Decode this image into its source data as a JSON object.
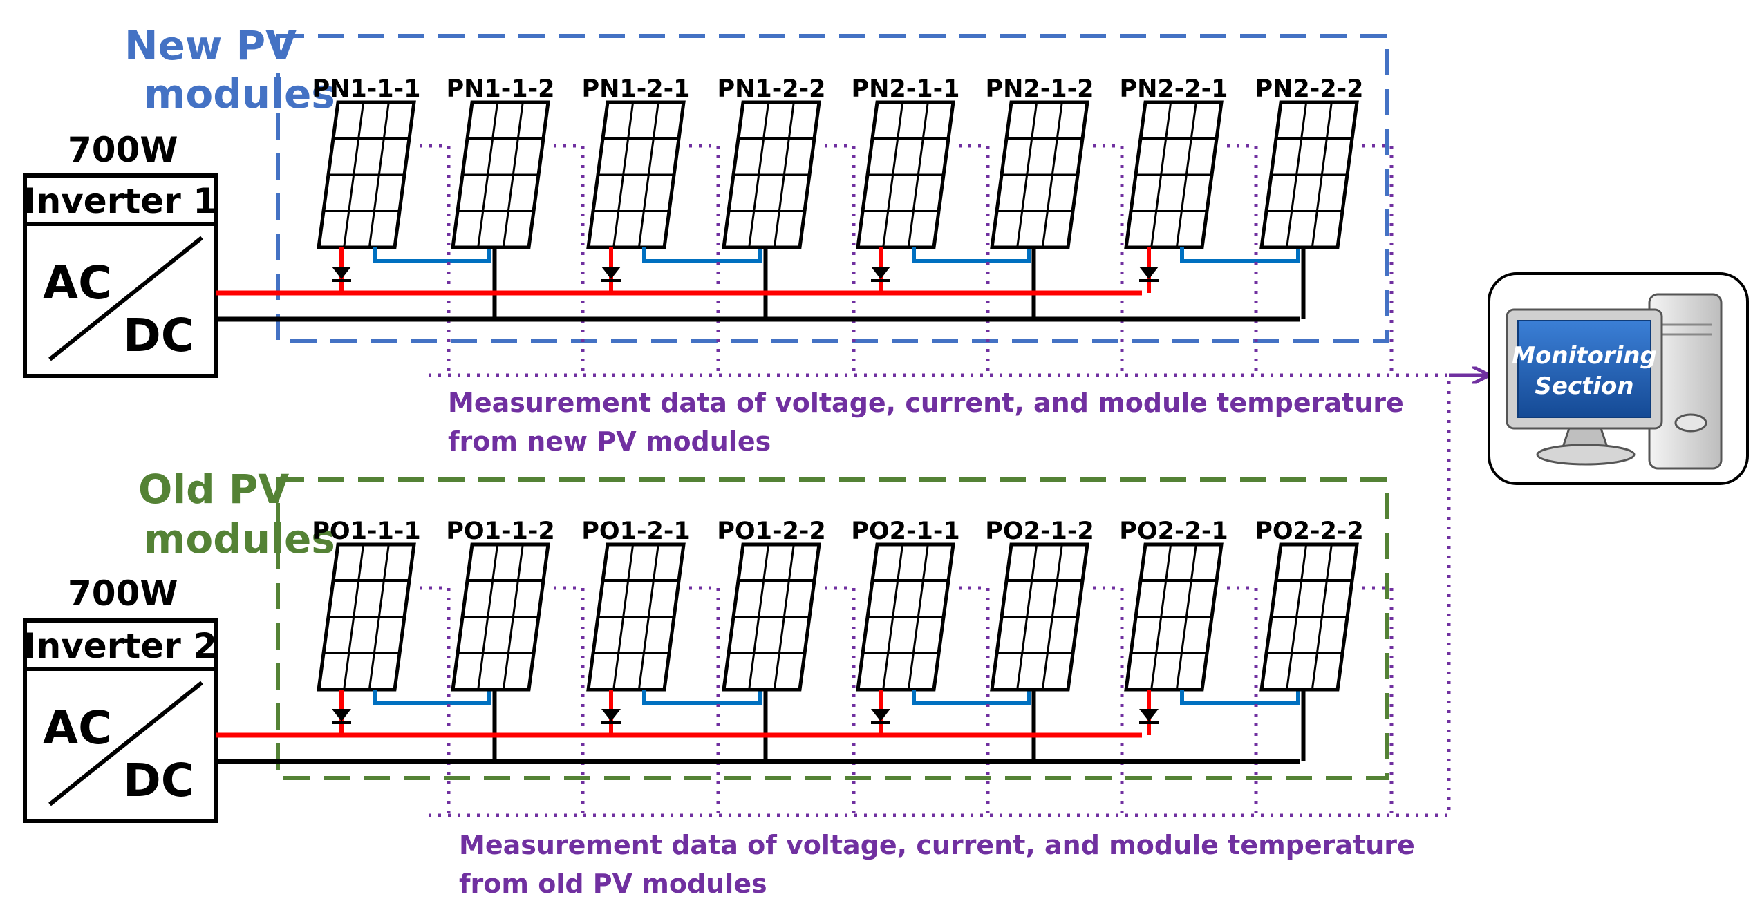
{
  "colors": {
    "new_group": "#4472c4",
    "old_group": "#548235",
    "positive_line": "#ff0000",
    "negative_line": "#000000",
    "series_link": "#0070c0",
    "measurement": "#7030a0",
    "monitor_screen": "#1f5fb0"
  },
  "groups": [
    {
      "id": "new",
      "title_line1": "New PV",
      "title_line2": "modules",
      "power": "700W",
      "inverter_label": "Inverter 1",
      "ac_label": "AC",
      "dc_label": "DC",
      "modules": [
        "PN1-1-1",
        "PN1-1-2",
        "PN1-2-1",
        "PN1-2-2",
        "PN2-1-1",
        "PN2-1-2",
        "PN2-2-1",
        "PN2-2-2"
      ],
      "measurement_line1": "Measurement data of voltage, current, and module temperature",
      "measurement_line2": "from new PV modules"
    },
    {
      "id": "old",
      "title_line1": "Old PV",
      "title_line2": "modules",
      "power": "700W",
      "inverter_label": "Inverter 2",
      "ac_label": "AC",
      "dc_label": "DC",
      "modules": [
        "PO1-1-1",
        "PO1-1-2",
        "PO1-2-1",
        "PO1-2-2",
        "PO2-1-1",
        "PO2-1-2",
        "PO2-2-1",
        "PO2-2-2"
      ],
      "measurement_line1": "Measurement data of voltage, current, and module temperature",
      "measurement_line2": "from old PV modules"
    }
  ],
  "monitor": {
    "line1": "Monitoring",
    "line2": "Section",
    "icon": "computer-icon"
  }
}
